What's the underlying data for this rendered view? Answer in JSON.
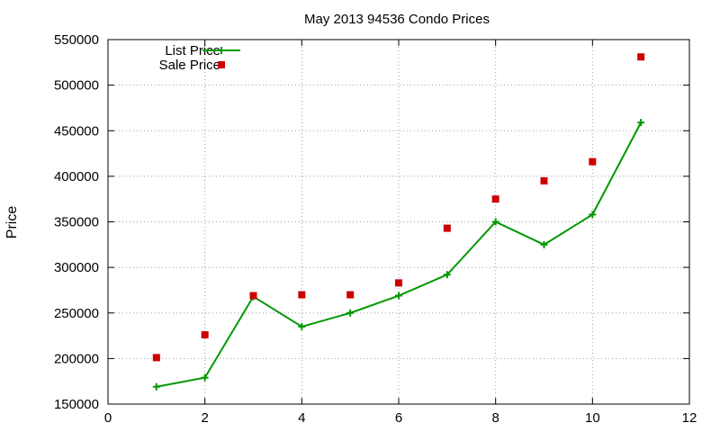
{
  "chart_data": {
    "type": "line",
    "title": "May 2013 94536 Condo Prices",
    "xlabel": "",
    "ylabel": "Price",
    "xlim": [
      0,
      12
    ],
    "ylim": [
      150000,
      550000
    ],
    "x_ticks": [
      0,
      2,
      4,
      6,
      8,
      10,
      12
    ],
    "y_ticks": [
      150000,
      200000,
      250000,
      300000,
      350000,
      400000,
      450000,
      500000,
      550000
    ],
    "grid": true,
    "legend_position": "top-left",
    "series": [
      {
        "name": "List Price",
        "style": "line-with-plus-markers",
        "color": "#009900",
        "x": [
          1,
          2,
          3,
          4,
          5,
          6,
          7,
          8,
          9,
          10,
          11
        ],
        "y": [
          169000,
          179000,
          268000,
          235000,
          250000,
          269000,
          292000,
          350000,
          325000,
          358000,
          459000
        ]
      },
      {
        "name": "Sale Price",
        "style": "square-markers",
        "color": "#cc0000",
        "x": [
          1,
          2,
          3,
          4,
          5,
          6,
          7,
          8,
          9,
          10,
          11
        ],
        "y": [
          201000,
          226000,
          269000,
          270000,
          270000,
          283000,
          343000,
          375000,
          395000,
          416000,
          531000
        ]
      }
    ]
  }
}
